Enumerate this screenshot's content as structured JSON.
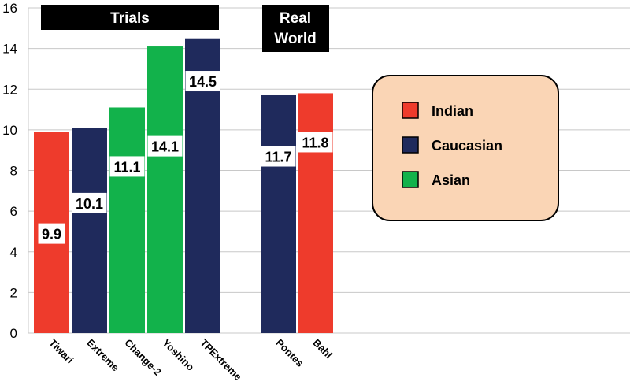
{
  "chart_data": {
    "type": "bar",
    "ylim": [
      0,
      16
    ],
    "yticks": [
      0,
      2,
      4,
      6,
      8,
      10,
      12,
      14,
      16
    ],
    "grid": true,
    "legend_position": "right",
    "groups": [
      {
        "label": "Trials",
        "categories": [
          "Tiwari",
          "Extreme",
          "Change-2",
          "Yoshino",
          "TPExtreme"
        ]
      },
      {
        "label": "Real World",
        "label_lines": [
          "Real",
          "World"
        ],
        "categories": [
          "Pontes",
          "Bahl"
        ]
      }
    ],
    "bars": [
      {
        "category": "Tiwari",
        "value": 9.9,
        "value_label": "9.9",
        "series": "Indian"
      },
      {
        "category": "Extreme",
        "value": 10.1,
        "value_label": "10.1",
        "series": "Caucasian"
      },
      {
        "category": "Change-2",
        "value": 11.1,
        "value_label": "11.1",
        "series": "Asian"
      },
      {
        "category": "Yoshino",
        "value": 14.1,
        "value_label": "14.1",
        "series": "Asian"
      },
      {
        "category": "TPExtreme",
        "value": 14.5,
        "value_label": "14.5",
        "series": "Caucasian"
      },
      {
        "category": "Pontes",
        "value": 11.7,
        "value_label": "11.7",
        "series": "Caucasian"
      },
      {
        "category": "Bahl",
        "value": 11.8,
        "value_label": "11.8",
        "series": "Indian"
      }
    ],
    "legend": [
      {
        "name": "Indian",
        "color": "#EE3B2C"
      },
      {
        "name": "Caucasian",
        "color": "#1F2A5C"
      },
      {
        "name": "Asian",
        "color": "#12B24B"
      }
    ],
    "legend_box_color": "#FAD5B5"
  }
}
